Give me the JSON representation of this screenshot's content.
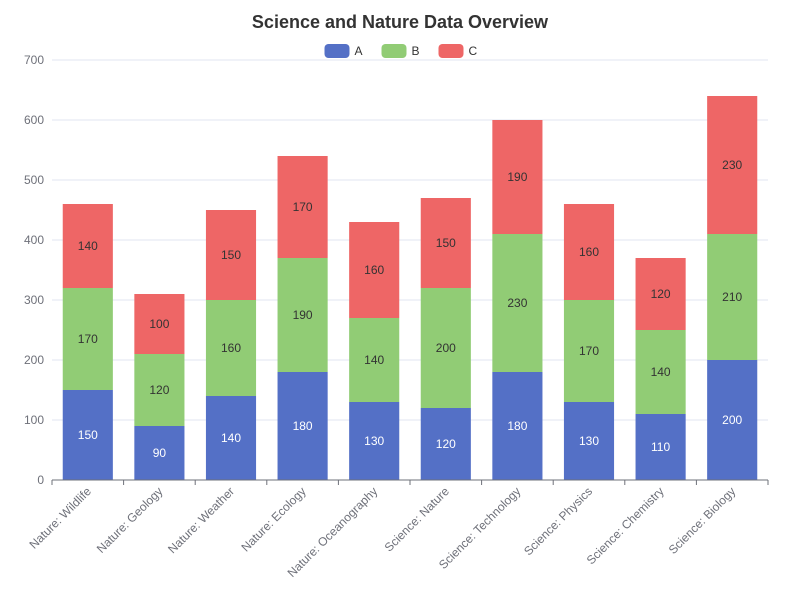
{
  "chart_data": {
    "type": "bar",
    "stacked": true,
    "title": "Science and Nature Data Overview",
    "xlabel": "",
    "ylabel": "",
    "ylim": [
      0,
      700
    ],
    "yticks": [
      0,
      100,
      200,
      300,
      400,
      500,
      600,
      700
    ],
    "grid": true,
    "legend_position": "top-center",
    "categories": [
      "Nature: Wildlife",
      "Nature: Geology",
      "Nature: Weather",
      "Nature: Ecology",
      "Nature: Oceanography",
      "Science: Nature",
      "Science: Technology",
      "Science: Physics",
      "Science: Chemistry",
      "Science: Biology"
    ],
    "series": [
      {
        "name": "A",
        "color": "#5470c6",
        "label_color": "#ffffff",
        "values": [
          150,
          90,
          140,
          180,
          130,
          120,
          180,
          130,
          110,
          200
        ]
      },
      {
        "name": "B",
        "color": "#91cc75",
        "label_color": "#333333",
        "values": [
          170,
          120,
          160,
          190,
          140,
          200,
          230,
          170,
          140,
          210
        ]
      },
      {
        "name": "C",
        "color": "#ee6666",
        "label_color": "#333333",
        "values": [
          140,
          100,
          150,
          170,
          160,
          150,
          190,
          160,
          120,
          230
        ]
      }
    ]
  }
}
